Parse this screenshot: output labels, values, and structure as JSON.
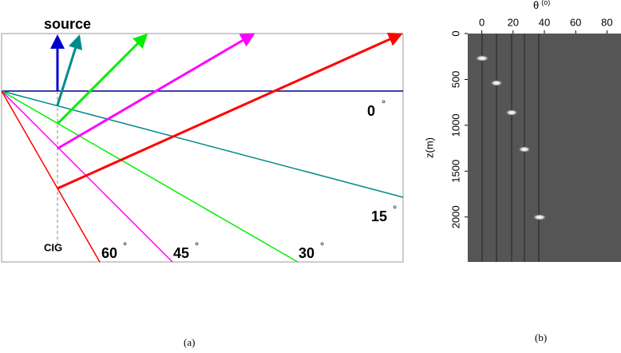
{
  "panel_a": {
    "source": "source",
    "cig": "CIG",
    "angles": [
      {
        "angle": "0",
        "degree": "°"
      },
      {
        "angle": "15",
        "degree": "°"
      },
      {
        "angle": "30",
        "degree": "°"
      },
      {
        "angle": "45",
        "degree": "°"
      },
      {
        "angle": "60",
        "degree": "°"
      }
    ],
    "caption": "(a)"
  },
  "panel_b": {
    "x_label": "θ",
    "x_unit": "(o)",
    "y_label": "z(m)",
    "xlim": [
      -9,
      89
    ],
    "ylim": [
      0,
      2490
    ],
    "xticks": [
      0,
      20,
      40,
      60,
      80
    ],
    "yticks": [
      0,
      500,
      1000,
      1500,
      2000
    ],
    "caption": "(b)"
  }
}
